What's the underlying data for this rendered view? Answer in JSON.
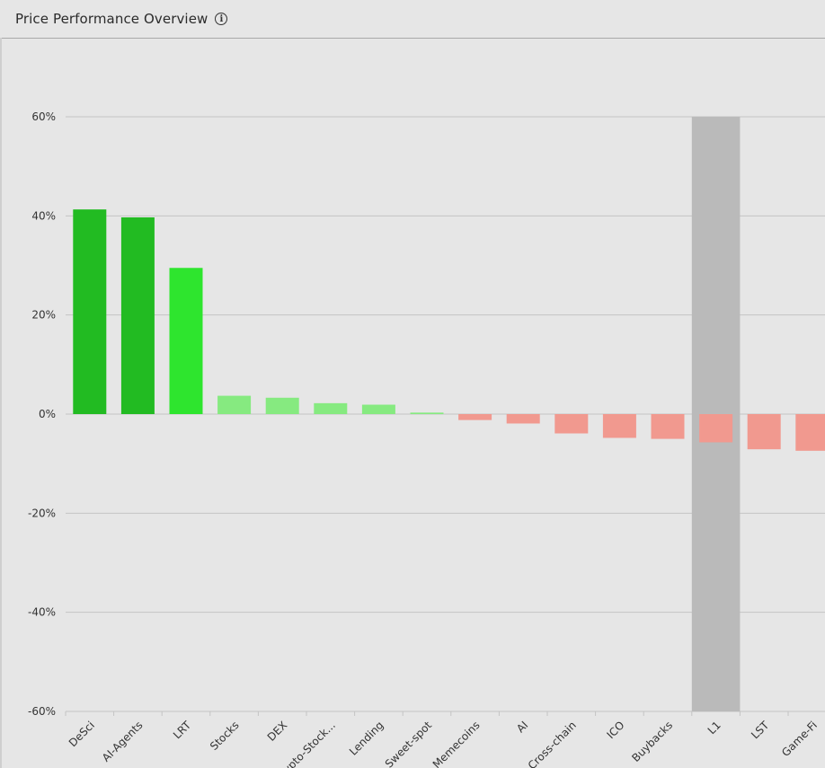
{
  "header": {
    "title": "Price Performance Overview",
    "info_icon": "info-circle-icon"
  },
  "chart_data": {
    "type": "bar",
    "categories": [
      "DeSci",
      "AI-Agents",
      "LRT",
      "Stocks",
      "DEX",
      "Crypto-Stock...",
      "Lending",
      "Sweet-spot",
      "Memecoins",
      "AI",
      "Cross-chain",
      "ICO",
      "Buybacks",
      "L1",
      "LST",
      "Game-Fi"
    ],
    "values": [
      41.3,
      39.7,
      29.5,
      3.7,
      3.3,
      2.2,
      1.9,
      0.3,
      -1.2,
      -1.9,
      -3.9,
      -4.8,
      -5.0,
      -5.7,
      -7.1,
      -7.4
    ],
    "ylim": [
      -60,
      60
    ],
    "yticks": [
      "60%",
      "40%",
      "20%",
      "0%",
      "-20%",
      "-40%",
      "-60%"
    ],
    "highlighted_category": "L1",
    "grid": true,
    "colors": {
      "strong_positive": "#22bb22",
      "top_positive": "#2ee52e",
      "mild_positive": "#86ea80",
      "negative": "#f1998f",
      "highlight_band": "#bababa",
      "grid": "#c4c4c4"
    }
  }
}
